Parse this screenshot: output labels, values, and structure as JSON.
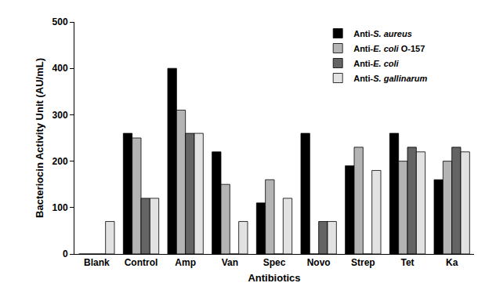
{
  "chart_data": {
    "type": "bar",
    "x_label": "Antibiotics",
    "y_label": "Bacteriocin Activity Unit (AU/mL)",
    "categories": [
      "Blank",
      "Control",
      "Amp",
      "Van",
      "Spec",
      "Novo",
      "Strep",
      "Tet",
      "Ka"
    ],
    "series": [
      {
        "name": "Anti-S. aureus",
        "color": "#000000",
        "values": [
          0,
          260,
          400,
          220,
          110,
          260,
          190,
          260,
          160
        ]
      },
      {
        "name": "Anti-E. coli O-157",
        "color": "#b4b4b4",
        "values": [
          0,
          250,
          310,
          150,
          160,
          0,
          230,
          200,
          200
        ]
      },
      {
        "name": "Anti-E. coli",
        "color": "#646464",
        "values": [
          0,
          120,
          260,
          0,
          0,
          70,
          0,
          230,
          230
        ]
      },
      {
        "name": "Anti-S. gallinarum",
        "color": "#e2e2e2",
        "values": [
          70,
          120,
          260,
          70,
          120,
          70,
          180,
          220,
          220
        ]
      }
    ],
    "ylim": [
      0,
      500
    ],
    "yticks": [
      0,
      100,
      200,
      300,
      400,
      500
    ],
    "grid": false,
    "legend": "top-right"
  }
}
